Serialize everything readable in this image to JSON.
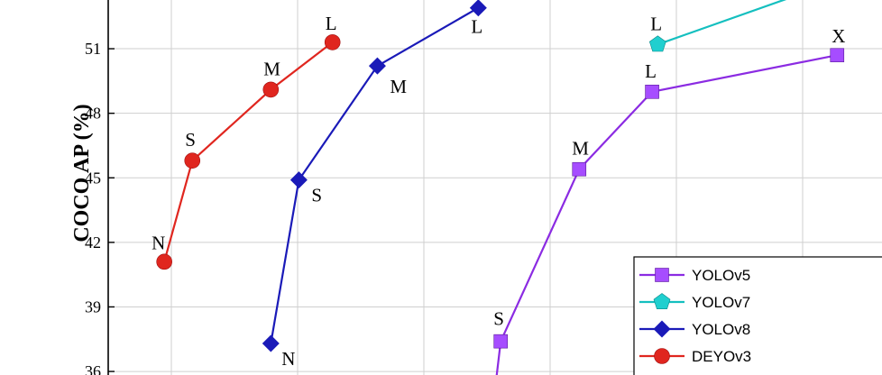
{
  "chart_data": {
    "type": "line",
    "ylabel": "COCO AP (%)",
    "xlabel": "",
    "title": "",
    "ylim": [
      35.5,
      53.6
    ],
    "yticks": [
      36,
      39,
      42,
      45,
      48,
      51
    ],
    "grid": true,
    "legend_position": "bottom-right",
    "series": [
      {
        "name": "YOLOv5",
        "color": "#8B2BE2",
        "marker_color": "#A64DFF",
        "marker": "square",
        "points": [
          {
            "label": "S",
            "x": 7.0,
            "y": 37.4
          },
          {
            "label": "M",
            "x": 8.4,
            "y": 45.4
          },
          {
            "label": "L",
            "x": 9.7,
            "y": 49.0
          },
          {
            "label": "X",
            "x": 13.0,
            "y": 50.7
          }
        ],
        "tail_from": {
          "x": 6.9,
          "y": 35.2
        }
      },
      {
        "name": "YOLOv7",
        "color": "#14BFBF",
        "marker_color": "#20CFCF",
        "marker": "pentagon",
        "points": [
          {
            "label": "L",
            "x": 9.8,
            "y": 51.2
          }
        ],
        "tail_to": {
          "x": 12.3,
          "y": 53.5
        }
      },
      {
        "name": "YOLOv8",
        "color": "#1A1AB8",
        "marker_color": "#1A1AB8",
        "marker": "diamond",
        "points": [
          {
            "label": "N",
            "x": 2.9,
            "y": 37.3
          },
          {
            "label": "S",
            "x": 3.4,
            "y": 44.9
          },
          {
            "label": "M",
            "x": 4.8,
            "y": 50.2
          },
          {
            "label": "L",
            "x": 6.6,
            "y": 52.9
          }
        ]
      },
      {
        "name": "DEYOv3",
        "color": "#E0261F",
        "marker_color": "#E0261F",
        "marker": "circle",
        "points": [
          {
            "label": "N",
            "x": 1.0,
            "y": 41.1
          },
          {
            "label": "S",
            "x": 1.5,
            "y": 45.8
          },
          {
            "label": "M",
            "x": 2.9,
            "y": 49.1
          },
          {
            "label": "L",
            "x": 4.0,
            "y": 51.3
          }
        ]
      }
    ]
  }
}
